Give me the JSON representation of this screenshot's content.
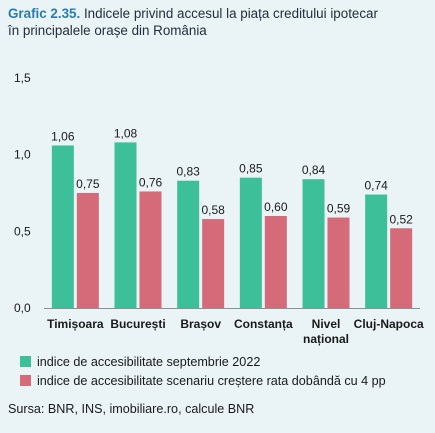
{
  "title": {
    "number": "Grafic 2.35.",
    "line1": "Indicele privind accesul la piața creditului ipotecar",
    "line2": "în principalele orașe din România"
  },
  "chart_data": {
    "type": "bar",
    "categories": [
      "Timișoara",
      "București",
      "Brașov",
      "Constanța",
      "Nivel național",
      "Cluj-Napoca"
    ],
    "category_lines": [
      [
        "Timișoara"
      ],
      [
        "București"
      ],
      [
        "Brașov"
      ],
      [
        "Constanța"
      ],
      [
        "Nivel",
        "național"
      ],
      [
        "Cluj-Napoca"
      ]
    ],
    "series": [
      {
        "name": "indice de accesibilitate septembrie 2022",
        "color": "#3dbf9a",
        "values": [
          1.06,
          1.08,
          0.83,
          0.85,
          0.84,
          0.74
        ],
        "labels": [
          "1,06",
          "1,08",
          "0,83",
          "0,85",
          "0,84",
          "0,74"
        ]
      },
      {
        "name": "indice de accesibilitate scenariu creștere rata dobândă cu 4 pp",
        "color": "#d56a78",
        "values": [
          0.75,
          0.76,
          0.58,
          0.6,
          0.59,
          0.52
        ],
        "labels": [
          "0,75",
          "0,76",
          "0,58",
          "0,60",
          "0,59",
          "0,52"
        ]
      }
    ],
    "yticks": [
      0,
      0.5,
      1.0,
      1.5
    ],
    "ytick_labels": [
      "0,0",
      "0,5",
      "1,0",
      "1,5"
    ],
    "ylim": [
      0,
      1.5
    ],
    "grid": false,
    "legend_position": "bottom"
  },
  "source": "Sursa: BNR, INS, imobiliare.ro, calcule BNR"
}
